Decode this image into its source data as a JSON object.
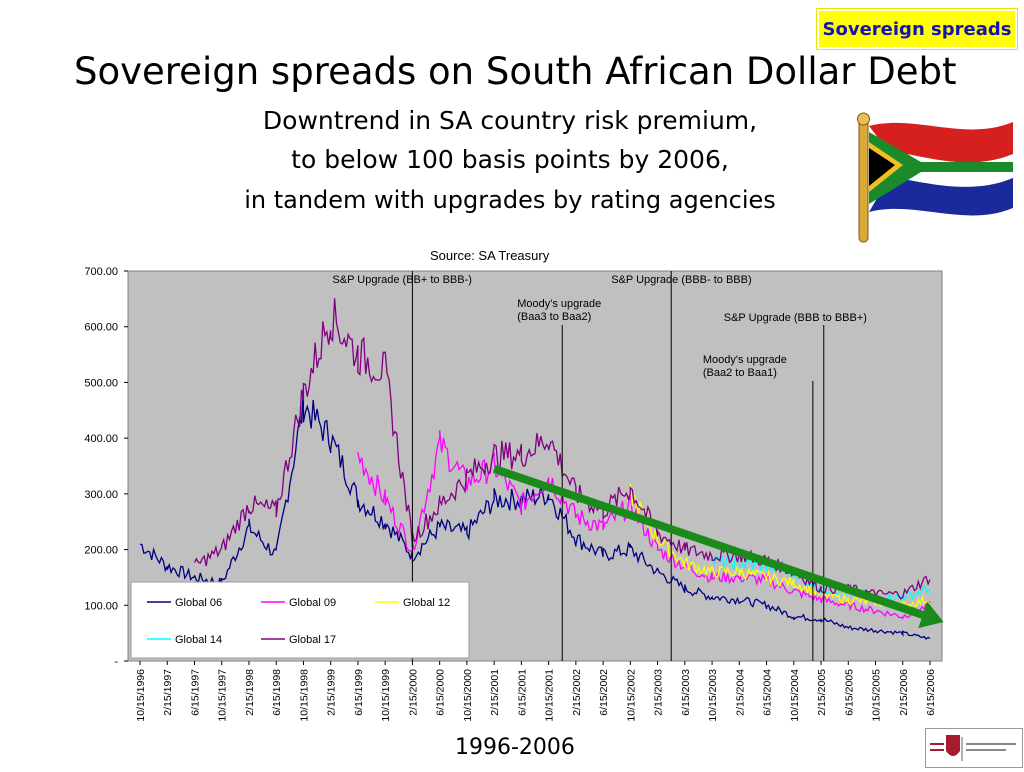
{
  "badge": {
    "label": "Sovereign spreads"
  },
  "title": "Sovereign spreads on South African Dollar Debt",
  "subtitle": {
    "line1": "Downtrend in SA country risk premium,",
    "line2": "to below 100 basis points by 2006,",
    "line3": "in tandem with  upgrades by rating agencies"
  },
  "source": "Source: SA Treasury",
  "footer": "1996-2006",
  "colors": {
    "plot_background": "#c0c0c0",
    "global06": "#000080",
    "global09": "#ff00ff",
    "global12": "#ffff00",
    "global14": "#00ffff",
    "global17": "#800080",
    "trend_arrow": "#1a8a1a"
  },
  "chart_data": {
    "type": "line",
    "title": "",
    "xlabel": "",
    "ylabel": "",
    "ylim": [
      0,
      700
    ],
    "yticks": [
      "-",
      "100.00",
      "200.00",
      "300.00",
      "400.00",
      "500.00",
      "600.00",
      "700.00"
    ],
    "grid": false,
    "legend_position": "bottom-left",
    "x": [
      "10/15/1996",
      "2/15/1997",
      "6/15/1997",
      "10/15/1997",
      "2/15/1998",
      "6/15/1998",
      "10/15/1998",
      "2/15/1999",
      "6/15/1999",
      "10/15/1999",
      "2/15/2000",
      "6/15/2000",
      "10/15/2000",
      "2/15/2001",
      "6/15/2001",
      "10/15/2001",
      "2/15/2002",
      "6/15/2002",
      "10/15/2002",
      "2/15/2003",
      "6/15/2003",
      "10/15/2003",
      "2/15/2004",
      "6/15/2004",
      "10/15/2004",
      "2/15/2005",
      "6/15/2005",
      "10/15/2005",
      "2/15/2006",
      "6/15/2006"
    ],
    "series": [
      {
        "name": "Global 06",
        "color_key": "global06",
        "values": [
          210,
          170,
          150,
          140,
          240,
          190,
          460,
          400,
          290,
          250,
          190,
          240,
          230,
          290,
          290,
          300,
          220,
          190,
          200,
          160,
          130,
          115,
          110,
          100,
          80,
          75,
          60,
          55,
          50,
          40
        ]
      },
      {
        "name": "Global 09",
        "color_key": "global09",
        "values": [
          null,
          null,
          null,
          null,
          null,
          null,
          null,
          null,
          370,
          290,
          200,
          390,
          320,
          350,
          280,
          330,
          260,
          240,
          280,
          200,
          170,
          150,
          150,
          145,
          125,
          110,
          100,
          90,
          80,
          100
        ]
      },
      {
        "name": "Global 12",
        "color_key": "global12",
        "values": [
          null,
          null,
          null,
          null,
          null,
          null,
          null,
          null,
          null,
          null,
          null,
          null,
          null,
          null,
          null,
          null,
          null,
          null,
          300,
          220,
          175,
          160,
          160,
          150,
          140,
          120,
          110,
          105,
          100,
          110
        ]
      },
      {
        "name": "Global 14",
        "color_key": "global14",
        "values": [
          null,
          null,
          null,
          null,
          null,
          null,
          null,
          null,
          null,
          null,
          null,
          null,
          null,
          null,
          null,
          null,
          null,
          null,
          null,
          null,
          null,
          180,
          175,
          170,
          160,
          130,
          125,
          115,
          115,
          130
        ]
      },
      {
        "name": "Global 17",
        "color_key": "global17",
        "values": [
          null,
          null,
          170,
          200,
          280,
          270,
          480,
          620,
          550,
          520,
          220,
          280,
          330,
          370,
          370,
          400,
          300,
          270,
          310,
          230,
          200,
          190,
          190,
          180,
          160,
          130,
          130,
          120,
          120,
          150
        ]
      }
    ],
    "events": [
      {
        "date_index": 10,
        "label": "S&P Upgrade (BB+ to BBB-)"
      },
      {
        "date_index": 15.5,
        "label": "Moody's upgrade (Baa3 to Baa2)"
      },
      {
        "date_index": 19.5,
        "label": "S&P Upgrade (BBB- to BBB)"
      },
      {
        "date_index": 24.7,
        "label": "Moody's upgrade (Baa2 to Baa1)"
      },
      {
        "date_index": 25.1,
        "label": "S&P Upgrade (BBB to BBB+)"
      }
    ],
    "trend_arrow": {
      "from": {
        "x_index": 13,
        "y": 345
      },
      "to": {
        "x_index": 29.5,
        "y": 70
      }
    },
    "legend": [
      "Global 06",
      "Global 09",
      "Global 12",
      "Global 14",
      "Global 17"
    ]
  }
}
